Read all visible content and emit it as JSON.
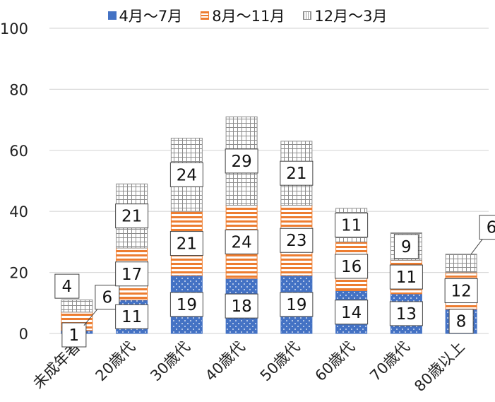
{
  "chart_data": {
    "type": "bar",
    "stacked": true,
    "categories": [
      "未成年者",
      "20歳代",
      "30歳代",
      "40歳代",
      "50歳代",
      "60歳代",
      "70歳代",
      "80歳以上"
    ],
    "series": [
      {
        "name": "4月～7月",
        "values": [
          1,
          11,
          19,
          18,
          19,
          14,
          13,
          8
        ],
        "color": "#4472C4",
        "pattern": "dots"
      },
      {
        "name": "8月～11月",
        "values": [
          6,
          17,
          21,
          24,
          23,
          16,
          11,
          12
        ],
        "color": "#ED7D31",
        "pattern": "horizontal-stripes"
      },
      {
        "name": "12月～3月",
        "values": [
          4,
          21,
          24,
          29,
          21,
          11,
          9,
          6
        ],
        "color": "#A5A5A5",
        "pattern": "grid"
      }
    ],
    "ylim": [
      0,
      100
    ],
    "yticks": [
      0,
      20,
      40,
      60,
      80,
      100
    ],
    "grid": true,
    "legend_position": "top",
    "data_labels": "callout-boxes",
    "title": "",
    "xlabel": "",
    "ylabel": ""
  }
}
